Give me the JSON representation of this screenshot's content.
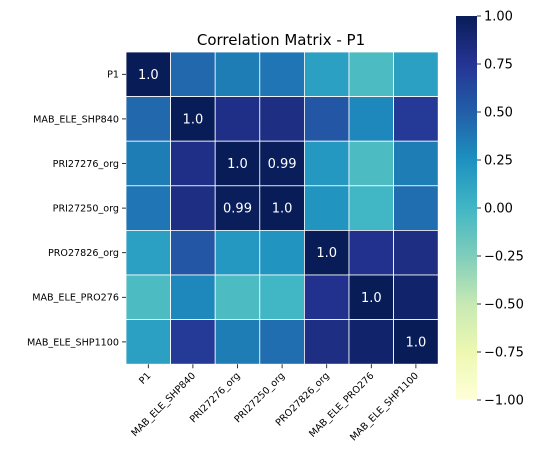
{
  "chart_data": {
    "type": "heatmap",
    "title": "Correlation Matrix - P1",
    "row_labels": [
      "P1",
      "MAB_ELE_SHP840",
      "PRI27276_org",
      "PRI27250_org",
      "PRO27826_org",
      "MAB_ELE_PRO276",
      "MAB_ELE_SHP1100"
    ],
    "col_labels": [
      "P1",
      "MAB_ELE_SHP840",
      "PRI27276_org",
      "PRI27250_org",
      "PRO27826_org",
      "MAB_ELE_PRO276",
      "MAB_ELE_SHP1100"
    ],
    "values": [
      [
        1.0,
        0.45,
        0.35,
        0.38,
        0.15,
        -0.05,
        0.15
      ],
      [
        0.45,
        1.0,
        0.8,
        0.82,
        0.55,
        0.3,
        0.72
      ],
      [
        0.35,
        0.8,
        1.0,
        0.99,
        0.2,
        -0.05,
        0.35
      ],
      [
        0.38,
        0.82,
        0.99,
        1.0,
        0.22,
        0.0,
        0.42
      ],
      [
        0.15,
        0.55,
        0.2,
        0.22,
        1.0,
        0.78,
        0.82
      ],
      [
        -0.05,
        0.3,
        -0.05,
        0.0,
        0.78,
        1.0,
        0.92
      ],
      [
        0.15,
        0.72,
        0.35,
        0.42,
        0.82,
        0.92,
        1.0
      ]
    ],
    "annotations": [
      {
        "row": 0,
        "col": 0,
        "text": "1.0"
      },
      {
        "row": 1,
        "col": 1,
        "text": "1.0"
      },
      {
        "row": 2,
        "col": 2,
        "text": "1.0"
      },
      {
        "row": 2,
        "col": 3,
        "text": "0.99"
      },
      {
        "row": 3,
        "col": 2,
        "text": "0.99"
      },
      {
        "row": 3,
        "col": 3,
        "text": "1.0"
      },
      {
        "row": 4,
        "col": 4,
        "text": "1.0"
      },
      {
        "row": 5,
        "col": 5,
        "text": "1.0"
      },
      {
        "row": 6,
        "col": 6,
        "text": "1.0"
      }
    ],
    "colorbar": {
      "colormap": "YlGnBu",
      "vmin": -1.0,
      "vmax": 1.0,
      "ticks": [
        "1.00",
        "0.75",
        "0.50",
        "0.25",
        "0.00",
        "−0.25",
        "−0.50",
        "−0.75",
        "−1.00"
      ],
      "tick_values": [
        1.0,
        0.75,
        0.5,
        0.25,
        0.0,
        -0.25,
        -0.5,
        -0.75,
        -1.0
      ],
      "stops": [
        "#ffffd9",
        "#edf8b1",
        "#c7e9b4",
        "#7fcdbb",
        "#41b6c4",
        "#1d91c0",
        "#225ea8",
        "#253494",
        "#081d58"
      ]
    },
    "grid_line_color": "#ffffff"
  }
}
